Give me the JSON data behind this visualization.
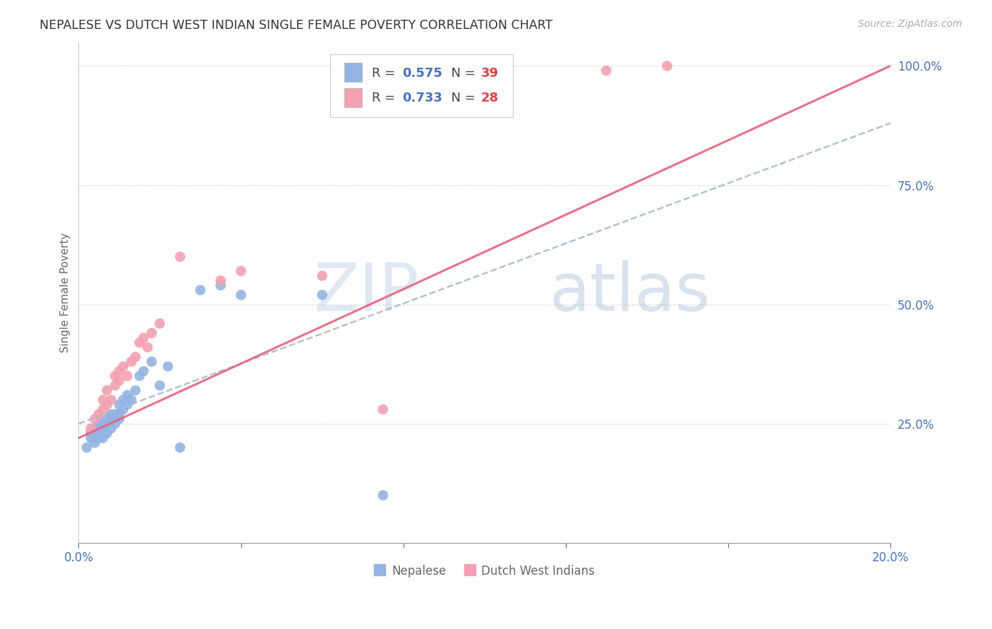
{
  "title": "NEPALESE VS DUTCH WEST INDIAN SINGLE FEMALE POVERTY CORRELATION CHART",
  "source": "Source: ZipAtlas.com",
  "ylabel": "Single Female Poverty",
  "xlim": [
    0.0,
    0.2
  ],
  "ylim": [
    0.0,
    1.05
  ],
  "ytick_values": [
    0.0,
    0.25,
    0.5,
    0.75,
    1.0
  ],
  "ytick_labels": [
    "",
    "25.0%",
    "50.0%",
    "75.0%",
    "100.0%"
  ],
  "xtick_values": [
    0.0,
    0.04,
    0.08,
    0.12,
    0.16,
    0.2
  ],
  "xtick_labels": [
    "0.0%",
    "",
    "",
    "",
    "",
    "20.0%"
  ],
  "nepalese_color": "#92b4e3",
  "dutch_color": "#f4a0b0",
  "nepalese_line_color": "#7090c8",
  "dutch_line_color": "#e8607a",
  "legend_R_color": "#4472c4",
  "legend_N_color": "#e84040",
  "watermark": "ZIPatlas",
  "nepalese_x": [
    0.002,
    0.003,
    0.003,
    0.004,
    0.004,
    0.005,
    0.005,
    0.005,
    0.006,
    0.006,
    0.006,
    0.007,
    0.007,
    0.007,
    0.008,
    0.008,
    0.008,
    0.009,
    0.009,
    0.01,
    0.01,
    0.01,
    0.011,
    0.011,
    0.012,
    0.012,
    0.013,
    0.014,
    0.015,
    0.016,
    0.018,
    0.02,
    0.022,
    0.025,
    0.03,
    0.035,
    0.04,
    0.06,
    0.075
  ],
  "nepalese_y": [
    0.2,
    0.22,
    0.23,
    0.21,
    0.24,
    0.22,
    0.23,
    0.25,
    0.22,
    0.24,
    0.25,
    0.23,
    0.25,
    0.26,
    0.24,
    0.26,
    0.27,
    0.25,
    0.27,
    0.26,
    0.27,
    0.29,
    0.28,
    0.3,
    0.29,
    0.31,
    0.3,
    0.32,
    0.35,
    0.36,
    0.38,
    0.33,
    0.37,
    0.2,
    0.53,
    0.54,
    0.52,
    0.52,
    0.1
  ],
  "dutch_x": [
    0.003,
    0.004,
    0.005,
    0.006,
    0.006,
    0.007,
    0.007,
    0.008,
    0.009,
    0.009,
    0.01,
    0.01,
    0.011,
    0.012,
    0.013,
    0.014,
    0.015,
    0.016,
    0.017,
    0.018,
    0.02,
    0.025,
    0.035,
    0.04,
    0.06,
    0.075,
    0.13,
    0.145
  ],
  "dutch_y": [
    0.24,
    0.26,
    0.27,
    0.28,
    0.3,
    0.29,
    0.32,
    0.3,
    0.33,
    0.35,
    0.34,
    0.36,
    0.37,
    0.35,
    0.38,
    0.39,
    0.42,
    0.43,
    0.41,
    0.44,
    0.46,
    0.6,
    0.55,
    0.57,
    0.56,
    0.28,
    0.99,
    1.0
  ],
  "background_color": "#ffffff",
  "grid_color": "#dddddd",
  "title_fontsize": 12.5,
  "axis_label_fontsize": 11,
  "tick_label_color": "#4472c4"
}
